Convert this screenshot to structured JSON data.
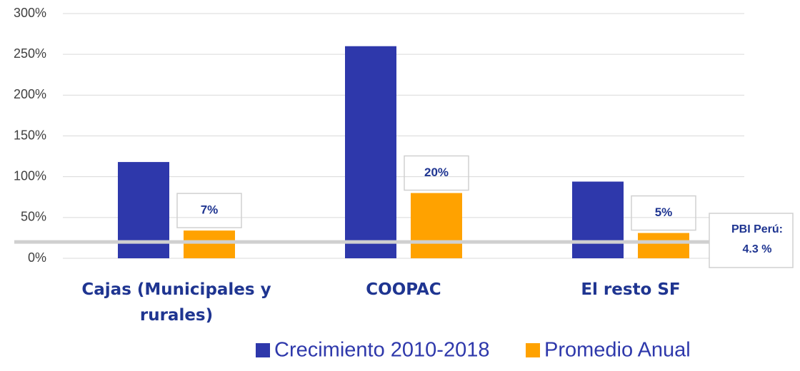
{
  "chart_data": {
    "type": "bar",
    "categories": [
      "Cajas (Municipales y rurales)",
      "COOPAC",
      "El resto SF"
    ],
    "series": [
      {
        "name": "Crecimiento 2010-2018",
        "color": "#2e38ab",
        "values": [
          118,
          260,
          94
        ]
      },
      {
        "name": "Promedio Anual",
        "color": "#ffa200",
        "values": [
          34,
          80,
          31
        ]
      }
    ],
    "annotations": [
      {
        "series": 1,
        "category": 0,
        "text": "7%"
      },
      {
        "series": 1,
        "category": 1,
        "text": "20%"
      },
      {
        "series": 1,
        "category": 2,
        "text": "5%"
      }
    ],
    "reference_line": {
      "value": 20,
      "label_lines": [
        "PBI Perú:",
        "4.3 %"
      ]
    },
    "ylim": [
      0,
      300
    ],
    "yticks": [
      {
        "value": 0,
        "label": "0%"
      },
      {
        "value": 50,
        "label": "50%"
      },
      {
        "value": 100,
        "label": "100%"
      },
      {
        "value": 150,
        "label": "150%"
      },
      {
        "value": 200,
        "label": "200%"
      },
      {
        "value": 250,
        "label": "250%"
      },
      {
        "value": 300,
        "label": "300%"
      }
    ],
    "grid": true,
    "legend": "bottom"
  }
}
